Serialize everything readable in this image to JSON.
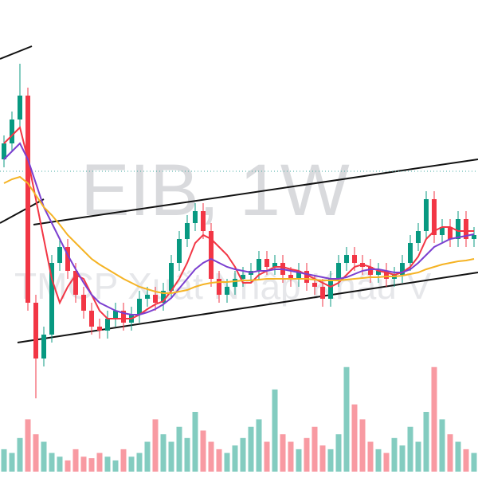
{
  "chart_data": {
    "type": "candlestick",
    "title": "EIB, 1W",
    "subtitle": "TMCP Xuất Nhập Khẩu V",
    "ylim": [
      0,
      600
    ],
    "volume_lim": [
      0,
      160
    ],
    "last_price": 385,
    "up_color": "#089981",
    "down_color": "#f23645",
    "open": [
      400,
      420,
      450,
      480,
      220,
      150,
      180,
      270,
      290,
      260,
      230,
      210,
      190,
      185,
      200,
      210,
      195,
      205,
      225,
      230,
      220,
      235,
      270,
      300,
      320,
      335,
      310,
      250,
      230,
      240,
      250,
      255,
      260,
      275,
      265,
      270,
      255,
      250,
      260,
      245,
      240,
      225,
      250,
      270,
      280,
      270,
      265,
      255,
      260,
      250,
      255,
      270,
      295,
      310,
      350,
      305,
      315,
      300,
      325,
      300
    ],
    "high": [
      430,
      460,
      520,
      490,
      230,
      190,
      280,
      300,
      300,
      270,
      240,
      220,
      200,
      210,
      220,
      220,
      215,
      235,
      240,
      240,
      245,
      280,
      310,
      330,
      345,
      345,
      320,
      260,
      250,
      260,
      265,
      270,
      285,
      285,
      280,
      280,
      265,
      270,
      270,
      255,
      250,
      260,
      280,
      290,
      290,
      280,
      275,
      270,
      270,
      265,
      280,
      305,
      320,
      360,
      360,
      325,
      325,
      335,
      335,
      315
    ],
    "low": [
      390,
      410,
      440,
      210,
      100,
      140,
      170,
      260,
      250,
      220,
      200,
      180,
      175,
      175,
      190,
      185,
      185,
      195,
      215,
      210,
      210,
      225,
      260,
      290,
      310,
      300,
      240,
      220,
      220,
      230,
      240,
      245,
      250,
      255,
      255,
      245,
      240,
      240,
      235,
      230,
      215,
      215,
      240,
      260,
      260,
      255,
      245,
      245,
      240,
      240,
      245,
      260,
      285,
      300,
      295,
      295,
      290,
      290,
      290,
      290
    ],
    "close": [
      420,
      450,
      480,
      220,
      150,
      180,
      270,
      290,
      260,
      230,
      210,
      190,
      185,
      200,
      210,
      195,
      205,
      225,
      230,
      220,
      235,
      270,
      300,
      320,
      335,
      310,
      250,
      230,
      240,
      250,
      255,
      260,
      275,
      265,
      270,
      255,
      250,
      260,
      245,
      240,
      225,
      250,
      270,
      280,
      270,
      265,
      255,
      260,
      250,
      255,
      270,
      295,
      310,
      350,
      305,
      315,
      300,
      325,
      300,
      305
    ],
    "volume": [
      30,
      25,
      45,
      70,
      50,
      40,
      25,
      20,
      15,
      30,
      20,
      18,
      25,
      20,
      15,
      30,
      20,
      25,
      40,
      70,
      50,
      40,
      60,
      45,
      80,
      55,
      40,
      30,
      25,
      35,
      45,
      60,
      70,
      40,
      110,
      50,
      40,
      30,
      45,
      60,
      35,
      30,
      50,
      140,
      90,
      70,
      40,
      30,
      25,
      45,
      35,
      60,
      40,
      80,
      140,
      70,
      50,
      40,
      30,
      25
    ],
    "series": [
      {
        "color": "#f23645",
        "values": [
          420,
          430,
          440,
          400,
          350,
          300,
          250,
          220,
          240,
          255,
          250,
          230,
          210,
          200,
          200,
          200,
          200,
          205,
          212,
          218,
          222,
          235,
          250,
          270,
          295,
          305,
          300,
          290,
          280,
          265,
          245,
          245,
          255,
          260,
          265,
          265,
          262,
          260,
          255,
          250,
          245,
          240,
          245,
          255,
          265,
          268,
          265,
          260,
          258,
          255,
          258,
          265,
          278,
          300,
          310,
          315,
          315,
          310,
          310,
          310
        ]
      },
      {
        "color": "#7b3fd0",
        "values": [
          400,
          410,
          420,
          400,
          370,
          340,
          320,
          300,
          280,
          262,
          245,
          230,
          220,
          215,
          210,
          207,
          205,
          205,
          208,
          212,
          218,
          226,
          238,
          250,
          262,
          270,
          275,
          270,
          265,
          262,
          260,
          258,
          260,
          260,
          262,
          262,
          260,
          258,
          256,
          254,
          252,
          250,
          250,
          252,
          256,
          260,
          262,
          262,
          260,
          258,
          258,
          262,
          270,
          280,
          290,
          295,
          300,
          302,
          304,
          306
        ]
      },
      {
        "color": "#f5b324",
        "values": [
          370,
          375,
          378,
          370,
          355,
          340,
          330,
          318,
          305,
          295,
          285,
          275,
          268,
          262,
          256,
          250,
          245,
          240,
          237,
          234,
          232,
          232,
          234,
          236,
          240,
          243,
          245,
          246,
          246,
          247,
          248,
          248,
          249,
          250,
          250,
          250,
          250,
          250,
          250,
          249,
          248,
          248,
          248,
          249,
          250,
          251,
          252,
          252,
          253,
          253,
          254,
          256,
          258,
          262,
          265,
          268,
          270,
          272,
          273,
          275
        ]
      }
    ]
  }
}
